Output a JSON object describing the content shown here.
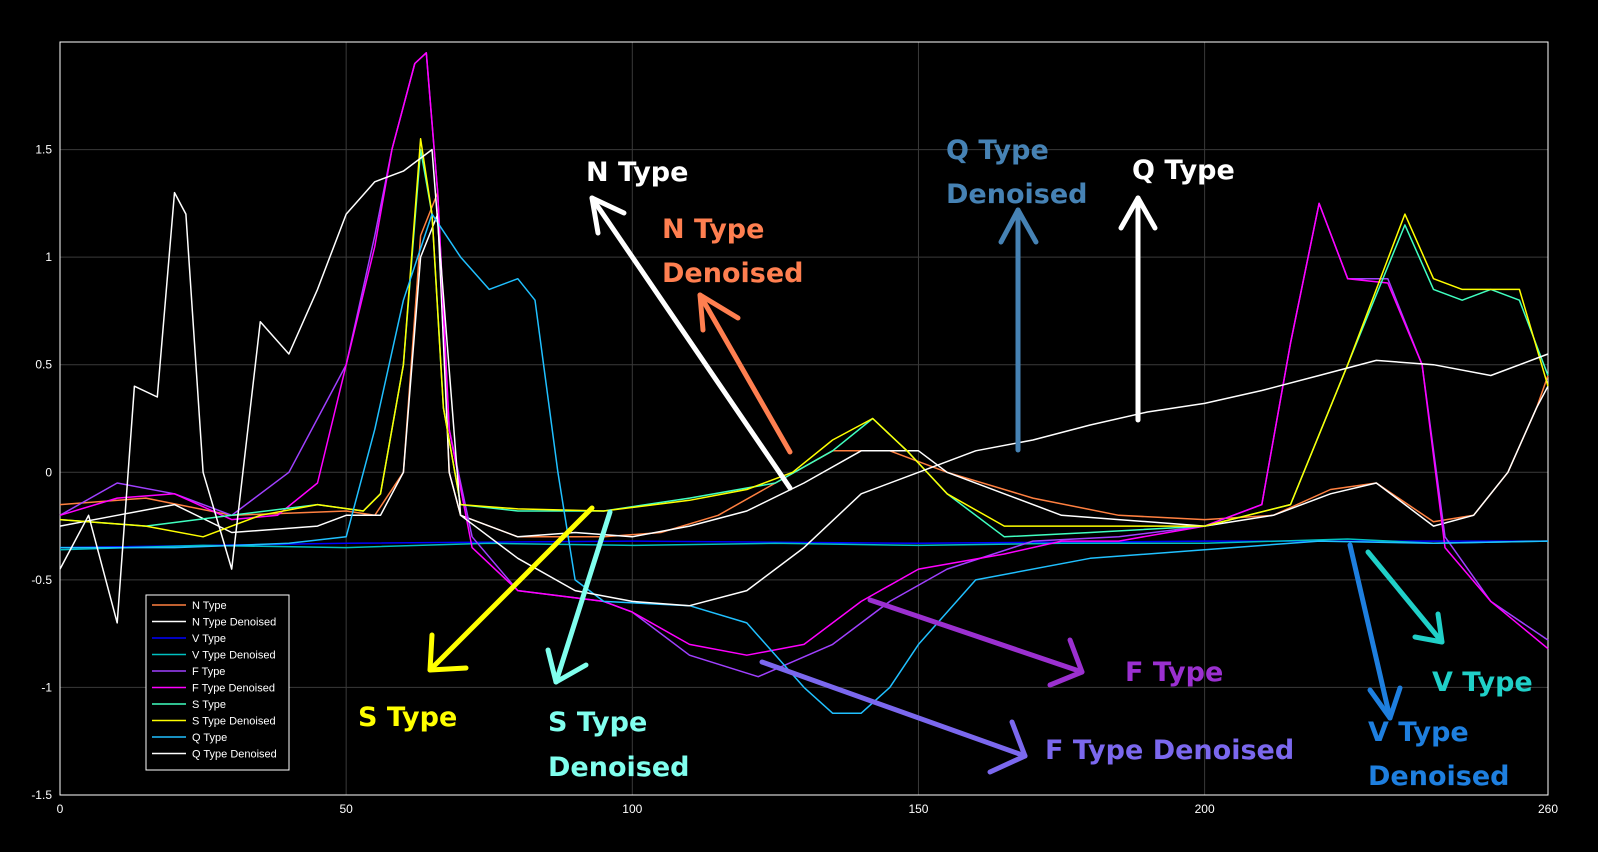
{
  "chart_data": {
    "type": "line",
    "title": "",
    "xlabel": "",
    "ylabel": "",
    "xlim": [
      0,
      260
    ],
    "ylim": [
      -1.5,
      2.0
    ],
    "grid": true,
    "legend_position": "bottom-left",
    "xticks": [
      "0",
      "50",
      "100",
      "150",
      "200",
      "260"
    ],
    "xtick_values": [
      0,
      50,
      100,
      150,
      200,
      260
    ],
    "yticks": [
      "-1.5",
      "-1",
      "-0.5",
      "0",
      "0.5",
      "1",
      "1.5"
    ],
    "ytick_values": [
      -1.5,
      -1,
      -0.5,
      0,
      0.5,
      1,
      1.5
    ],
    "series": [
      {
        "name": "N Type",
        "color": "#ff8040",
        "points": [
          [
            0,
            -0.15
          ],
          [
            15,
            -0.12
          ],
          [
            30,
            -0.2
          ],
          [
            50,
            -0.18
          ],
          [
            55,
            -0.2
          ],
          [
            60,
            0.0
          ],
          [
            63,
            1.1
          ],
          [
            66,
            1.3
          ],
          [
            68,
            0.0
          ],
          [
            70,
            -0.2
          ],
          [
            80,
            -0.3
          ],
          [
            95,
            -0.3
          ],
          [
            105,
            -0.28
          ],
          [
            115,
            -0.2
          ],
          [
            125,
            -0.05
          ],
          [
            135,
            0.1
          ],
          [
            145,
            0.1
          ],
          [
            155,
            0.0
          ],
          [
            170,
            -0.12
          ],
          [
            185,
            -0.2
          ],
          [
            200,
            -0.22
          ],
          [
            212,
            -0.2
          ],
          [
            222,
            -0.08
          ],
          [
            230,
            -0.05
          ],
          [
            240,
            -0.23
          ],
          [
            247,
            -0.2
          ],
          [
            253,
            0.0
          ],
          [
            258,
            0.3
          ],
          [
            260,
            0.45
          ]
        ]
      },
      {
        "name": "N Type Denoised",
        "color": "#ffffff",
        "points": [
          [
            0,
            -0.25
          ],
          [
            10,
            -0.2
          ],
          [
            20,
            -0.15
          ],
          [
            30,
            -0.28
          ],
          [
            45,
            -0.25
          ],
          [
            50,
            -0.2
          ],
          [
            56,
            -0.2
          ],
          [
            60,
            0.0
          ],
          [
            63,
            1.0
          ],
          [
            66,
            1.2
          ],
          [
            68,
            0.0
          ],
          [
            70,
            -0.2
          ],
          [
            80,
            -0.3
          ],
          [
            90,
            -0.28
          ],
          [
            100,
            -0.3
          ],
          [
            110,
            -0.25
          ],
          [
            120,
            -0.18
          ],
          [
            130,
            -0.05
          ],
          [
            140,
            0.1
          ],
          [
            150,
            0.1
          ],
          [
            155,
            0.0
          ],
          [
            165,
            -0.1
          ],
          [
            175,
            -0.2
          ],
          [
            185,
            -0.22
          ],
          [
            200,
            -0.25
          ],
          [
            212,
            -0.2
          ],
          [
            222,
            -0.1
          ],
          [
            230,
            -0.05
          ],
          [
            240,
            -0.25
          ],
          [
            247,
            -0.2
          ],
          [
            253,
            0.0
          ],
          [
            258,
            0.3
          ],
          [
            260,
            0.4
          ]
        ]
      },
      {
        "name": "V Type",
        "color": "#0000ff",
        "points": [
          [
            0,
            -0.35
          ],
          [
            50,
            -0.33
          ],
          [
            100,
            -0.32
          ],
          [
            150,
            -0.33
          ],
          [
            200,
            -0.32
          ],
          [
            260,
            -0.32
          ]
        ]
      },
      {
        "name": "V Type Denoised",
        "color": "#00c0c0",
        "points": [
          [
            0,
            -0.36
          ],
          [
            25,
            -0.34
          ],
          [
            50,
            -0.35
          ],
          [
            75,
            -0.33
          ],
          [
            100,
            -0.34
          ],
          [
            125,
            -0.33
          ],
          [
            150,
            -0.34
          ],
          [
            175,
            -0.33
          ],
          [
            200,
            -0.33
          ],
          [
            225,
            -0.31
          ],
          [
            240,
            -0.33
          ],
          [
            260,
            -0.32
          ]
        ]
      },
      {
        "name": "F Type",
        "color": "#a040ff",
        "points": [
          [
            0,
            -0.2
          ],
          [
            10,
            -0.05
          ],
          [
            20,
            -0.1
          ],
          [
            30,
            -0.2
          ],
          [
            40,
            0.0
          ],
          [
            50,
            0.5
          ],
          [
            55,
            1.1
          ],
          [
            58,
            1.5
          ],
          [
            62,
            1.9
          ],
          [
            64,
            1.95
          ],
          [
            66,
            1.3
          ],
          [
            68,
            0.2
          ],
          [
            72,
            -0.3
          ],
          [
            80,
            -0.55
          ],
          [
            95,
            -0.6
          ],
          [
            100,
            -0.65
          ],
          [
            110,
            -0.85
          ],
          [
            122,
            -0.95
          ],
          [
            135,
            -0.8
          ],
          [
            145,
            -0.6
          ],
          [
            155,
            -0.45
          ],
          [
            170,
            -0.32
          ],
          [
            185,
            -0.3
          ],
          [
            200,
            -0.25
          ],
          [
            210,
            -0.15
          ],
          [
            215,
            0.6
          ],
          [
            220,
            1.25
          ],
          [
            225,
            0.9
          ],
          [
            232,
            0.9
          ],
          [
            238,
            0.5
          ],
          [
            242,
            -0.3
          ],
          [
            250,
            -0.6
          ],
          [
            260,
            -0.78
          ]
        ]
      },
      {
        "name": "F Type Denoised",
        "color": "#ff00ff",
        "points": [
          [
            0,
            -0.2
          ],
          [
            10,
            -0.12
          ],
          [
            20,
            -0.1
          ],
          [
            30,
            -0.22
          ],
          [
            38,
            -0.2
          ],
          [
            45,
            -0.05
          ],
          [
            50,
            0.5
          ],
          [
            55,
            1.05
          ],
          [
            58,
            1.5
          ],
          [
            62,
            1.9
          ],
          [
            64,
            1.95
          ],
          [
            66,
            1.3
          ],
          [
            68,
            0.2
          ],
          [
            72,
            -0.35
          ],
          [
            80,
            -0.55
          ],
          [
            95,
            -0.6
          ],
          [
            100,
            -0.65
          ],
          [
            110,
            -0.8
          ],
          [
            120,
            -0.85
          ],
          [
            130,
            -0.8
          ],
          [
            140,
            -0.6
          ],
          [
            150,
            -0.45
          ],
          [
            165,
            -0.38
          ],
          [
            175,
            -0.32
          ],
          [
            185,
            -0.32
          ],
          [
            200,
            -0.25
          ],
          [
            210,
            -0.15
          ],
          [
            215,
            0.6
          ],
          [
            220,
            1.25
          ],
          [
            225,
            0.9
          ],
          [
            232,
            0.88
          ],
          [
            238,
            0.5
          ],
          [
            242,
            -0.35
          ],
          [
            250,
            -0.6
          ],
          [
            260,
            -0.82
          ]
        ]
      },
      {
        "name": "S Type",
        "color": "#40ffc0",
        "points": [
          [
            0,
            -0.22
          ],
          [
            15,
            -0.25
          ],
          [
            30,
            -0.2
          ],
          [
            45,
            -0.15
          ],
          [
            53,
            -0.18
          ],
          [
            56,
            -0.1
          ],
          [
            60,
            0.5
          ],
          [
            63,
            1.5
          ],
          [
            65,
            1.2
          ],
          [
            67,
            0.3
          ],
          [
            70,
            -0.15
          ],
          [
            80,
            -0.18
          ],
          [
            95,
            -0.18
          ],
          [
            110,
            -0.12
          ],
          [
            125,
            -0.05
          ],
          [
            135,
            0.1
          ],
          [
            142,
            0.25
          ],
          [
            148,
            0.1
          ],
          [
            155,
            -0.1
          ],
          [
            165,
            -0.3
          ],
          [
            180,
            -0.28
          ],
          [
            200,
            -0.25
          ],
          [
            215,
            -0.15
          ],
          [
            225,
            0.5
          ],
          [
            235,
            1.15
          ],
          [
            240,
            0.85
          ],
          [
            245,
            0.8
          ],
          [
            250,
            0.85
          ],
          [
            255,
            0.8
          ],
          [
            260,
            0.45
          ]
        ]
      },
      {
        "name": "S Type Denoised",
        "color": "#ffff00",
        "points": [
          [
            0,
            -0.22
          ],
          [
            15,
            -0.25
          ],
          [
            25,
            -0.3
          ],
          [
            35,
            -0.2
          ],
          [
            45,
            -0.15
          ],
          [
            53,
            -0.18
          ],
          [
            56,
            -0.1
          ],
          [
            60,
            0.5
          ],
          [
            63,
            1.55
          ],
          [
            65,
            1.2
          ],
          [
            67,
            0.3
          ],
          [
            70,
            -0.15
          ],
          [
            80,
            -0.17
          ],
          [
            95,
            -0.18
          ],
          [
            110,
            -0.13
          ],
          [
            120,
            -0.08
          ],
          [
            128,
            0.0
          ],
          [
            135,
            0.15
          ],
          [
            142,
            0.25
          ],
          [
            148,
            0.1
          ],
          [
            155,
            -0.1
          ],
          [
            165,
            -0.25
          ],
          [
            180,
            -0.25
          ],
          [
            200,
            -0.25
          ],
          [
            215,
            -0.15
          ],
          [
            225,
            0.5
          ],
          [
            235,
            1.2
          ],
          [
            240,
            0.9
          ],
          [
            245,
            0.85
          ],
          [
            250,
            0.85
          ],
          [
            255,
            0.85
          ],
          [
            260,
            0.4
          ]
        ]
      },
      {
        "name": "Q Type",
        "color": "#20c0ff",
        "points": [
          [
            0,
            -0.35
          ],
          [
            20,
            -0.35
          ],
          [
            40,
            -0.33
          ],
          [
            50,
            -0.3
          ],
          [
            55,
            0.2
          ],
          [
            60,
            0.8
          ],
          [
            65,
            1.2
          ],
          [
            70,
            1.0
          ],
          [
            75,
            0.85
          ],
          [
            80,
            0.9
          ],
          [
            83,
            0.8
          ],
          [
            87,
            0.0
          ],
          [
            90,
            -0.5
          ],
          [
            95,
            -0.6
          ],
          [
            110,
            -0.62
          ],
          [
            120,
            -0.7
          ],
          [
            130,
            -1.0
          ],
          [
            135,
            -1.12
          ],
          [
            140,
            -1.12
          ],
          [
            145,
            -1.0
          ],
          [
            150,
            -0.8
          ],
          [
            160,
            -0.5
          ],
          [
            180,
            -0.4
          ],
          [
            200,
            -0.36
          ],
          [
            220,
            -0.32
          ],
          [
            240,
            -0.33
          ],
          [
            260,
            -0.32
          ]
        ]
      },
      {
        "name": "Q Type Denoised",
        "color": "#ffffff",
        "points": [
          [
            0,
            -0.45
          ],
          [
            5,
            -0.2
          ],
          [
            10,
            -0.7
          ],
          [
            13,
            0.4
          ],
          [
            17,
            0.35
          ],
          [
            20,
            1.3
          ],
          [
            22,
            1.2
          ],
          [
            25,
            0.0
          ],
          [
            30,
            -0.45
          ],
          [
            35,
            0.7
          ],
          [
            40,
            0.55
          ],
          [
            45,
            0.85
          ],
          [
            50,
            1.2
          ],
          [
            55,
            1.35
          ],
          [
            60,
            1.4
          ],
          [
            65,
            1.5
          ],
          [
            70,
            -0.2
          ],
          [
            80,
            -0.4
          ],
          [
            90,
            -0.55
          ],
          [
            100,
            -0.6
          ],
          [
            110,
            -0.62
          ],
          [
            120,
            -0.55
          ],
          [
            130,
            -0.35
          ],
          [
            140,
            -0.1
          ],
          [
            150,
            0.0
          ],
          [
            160,
            0.1
          ],
          [
            170,
            0.15
          ],
          [
            180,
            0.22
          ],
          [
            190,
            0.28
          ],
          [
            200,
            0.32
          ],
          [
            210,
            0.38
          ],
          [
            220,
            0.45
          ],
          [
            230,
            0.52
          ],
          [
            240,
            0.5
          ],
          [
            250,
            0.45
          ],
          [
            260,
            0.55
          ]
        ]
      }
    ],
    "annotations": [
      {
        "text": "N Type",
        "color": "#ffffff"
      },
      {
        "text": "N Type",
        "color": "#ff7f50"
      },
      {
        "text": "Denoised",
        "color": "#ff7f50"
      },
      {
        "text": "Q Type",
        "color": "#4682b4"
      },
      {
        "text": "Denoised",
        "color": "#4682b4"
      },
      {
        "text": "Q Type",
        "color": "#ffffff"
      },
      {
        "text": "S Type",
        "color": "#ffff00"
      },
      {
        "text": "S Type",
        "color": "#80ffee"
      },
      {
        "text": "Denoised",
        "color": "#80ffee"
      },
      {
        "text": "F Type",
        "color": "#9b30d0"
      },
      {
        "text": "F Type Denoised",
        "color": "#7b68ee"
      },
      {
        "text": "V Type",
        "color": "#20d0c8"
      },
      {
        "text": "V Type",
        "color": "#1e7fdf"
      },
      {
        "text": "Denoised",
        "color": "#1e7fdf"
      }
    ]
  }
}
